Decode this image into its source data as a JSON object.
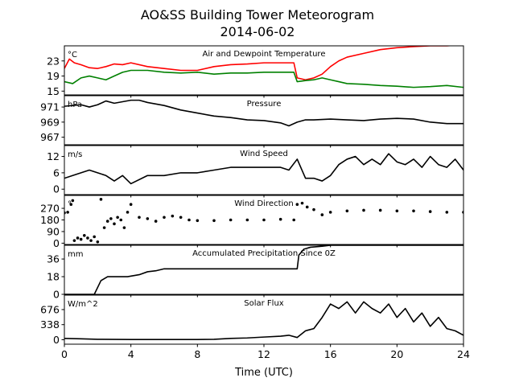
{
  "figure": {
    "title_line1": "AO&SS Building Tower Meteorogram",
    "title_line2": "2014-06-02",
    "xlabel": "Time (UTC)",
    "xlim": [
      0,
      24
    ],
    "xticks": [
      0,
      4,
      8,
      12,
      16,
      20,
      24
    ]
  },
  "chart_data": [
    {
      "type": "line",
      "title": "Air and Dewpoint Temperature",
      "unit": "°C",
      "ylim": [
        14,
        27
      ],
      "yticks": [
        15,
        19,
        23
      ],
      "series": [
        {
          "color": "#ff0000",
          "x": [
            0,
            0.3,
            0.6,
            1,
            1.5,
            2,
            2.5,
            3,
            3.5,
            4,
            5,
            6,
            7,
            8,
            9,
            10,
            11,
            12,
            13,
            13.8,
            14,
            14.5,
            15,
            15.5,
            16,
            16.5,
            17,
            18,
            19,
            20,
            21,
            22,
            23,
            24
          ],
          "y": [
            21,
            23.5,
            22.5,
            22,
            21.2,
            21,
            21.5,
            22.2,
            22,
            22.5,
            21.5,
            21,
            20.5,
            20.5,
            21.5,
            22,
            22.2,
            22.5,
            22.5,
            22.5,
            18.5,
            18,
            18.5,
            19.5,
            21.5,
            23,
            24,
            25,
            26,
            26.5,
            26.8,
            27,
            27,
            27.3
          ]
        },
        {
          "color": "#008000",
          "x": [
            0,
            0.5,
            1,
            1.5,
            2,
            2.5,
            3,
            3.5,
            4,
            5,
            6,
            7,
            8,
            9,
            10,
            11,
            12,
            13,
            13.8,
            14,
            14.5,
            15,
            15.5,
            16,
            16.5,
            17,
            18,
            19,
            20,
            21,
            22,
            23,
            24
          ],
          "y": [
            17.5,
            17,
            18.5,
            19,
            18.5,
            18,
            19,
            20,
            20.5,
            20.5,
            20,
            19.8,
            20,
            19.5,
            19.8,
            19.8,
            20,
            20,
            20,
            17.5,
            17.8,
            18,
            18.5,
            18,
            17.5,
            17,
            16.8,
            16.5,
            16.3,
            16,
            16.2,
            16.5,
            16
          ]
        }
      ]
    },
    {
      "type": "line",
      "title": "Pressure",
      "unit": "hPa",
      "ylim": [
        966,
        972.5
      ],
      "yticks": [
        967,
        969,
        971
      ],
      "series": [
        {
          "color": "#000000",
          "x": [
            0,
            0.5,
            1,
            1.5,
            2,
            2.5,
            3,
            3.5,
            4,
            4.5,
            5,
            5.5,
            6,
            7,
            8,
            9,
            10,
            11,
            12,
            13,
            13.5,
            14,
            14.5,
            15,
            16,
            17,
            18,
            19,
            20,
            21,
            22,
            23,
            24
          ],
          "y": [
            971.1,
            971.2,
            971.3,
            971.0,
            971.3,
            971.8,
            971.5,
            971.7,
            971.9,
            971.9,
            971.6,
            971.4,
            971.2,
            970.6,
            970.2,
            969.8,
            969.6,
            969.3,
            969.2,
            968.9,
            968.5,
            969.0,
            969.3,
            969.3,
            969.4,
            969.3,
            969.2,
            969.4,
            969.5,
            969.4,
            969.0,
            968.8,
            968.8
          ]
        }
      ]
    },
    {
      "type": "line",
      "title": "Wind Speed",
      "unit": "m/s",
      "ylim": [
        -2,
        16
      ],
      "yticks": [
        0,
        6,
        12
      ],
      "series": [
        {
          "color": "#000000",
          "x": [
            0,
            0.5,
            1,
            1.5,
            2,
            2.5,
            3,
            3.5,
            4,
            5,
            6,
            7,
            8,
            9,
            10,
            11,
            12,
            13,
            13.5,
            14,
            14.5,
            15,
            15.5,
            16,
            16.5,
            17,
            17.5,
            18,
            18.5,
            19,
            19.5,
            20,
            20.5,
            21,
            21.5,
            22,
            22.5,
            23,
            23.5,
            24
          ],
          "y": [
            4,
            5,
            6,
            7,
            6,
            5,
            3,
            5,
            2,
            5,
            5,
            6,
            6,
            7,
            8,
            8,
            8,
            8,
            7,
            11,
            4,
            4,
            3,
            5,
            9,
            11,
            12,
            9,
            11,
            9,
            13,
            10,
            9,
            11,
            8,
            12,
            9,
            8,
            11,
            7
          ]
        }
      ]
    },
    {
      "type": "scatter",
      "title": "Wind Direction",
      "unit": "°",
      "ylim": [
        -10,
        370
      ],
      "yticks": [
        0,
        90,
        180,
        270
      ],
      "series": [
        {
          "color": "#000000",
          "x": [
            0,
            0.2,
            0.4,
            0.5,
            0.6,
            0.8,
            1,
            1.2,
            1.4,
            1.6,
            1.8,
            2,
            2.2,
            2.4,
            2.6,
            2.8,
            3,
            3.2,
            3.4,
            3.6,
            3.8,
            4,
            4.5,
            5,
            5.5,
            6,
            6.5,
            7,
            7.5,
            8,
            9,
            10,
            11,
            12,
            13,
            13.8,
            14,
            14.3,
            14.6,
            15,
            15.5,
            16,
            17,
            18,
            19,
            20,
            21,
            22,
            23,
            24
          ],
          "y": [
            235,
            240,
            300,
            330,
            20,
            40,
            30,
            60,
            40,
            20,
            50,
            10,
            340,
            120,
            170,
            190,
            150,
            200,
            180,
            120,
            240,
            300,
            200,
            190,
            170,
            200,
            210,
            200,
            180,
            175,
            175,
            180,
            180,
            180,
            185,
            180,
            300,
            310,
            280,
            260,
            220,
            240,
            250,
            255,
            255,
            250,
            250,
            245,
            240,
            240
          ]
        }
      ]
    },
    {
      "type": "line",
      "title": "Accumulated Precipitation Since 0Z",
      "unit": "mm",
      "ylim": [
        0,
        50
      ],
      "yticks": [
        0,
        18,
        36
      ],
      "series": [
        {
          "color": "#000000",
          "x": [
            0,
            1.8,
            2.2,
            2.6,
            3,
            3.8,
            4.5,
            5,
            5.5,
            6,
            7,
            8,
            9,
            10,
            11,
            12,
            13,
            14,
            14.1,
            14.4,
            14.8,
            15.5,
            16,
            16.5,
            17,
            18,
            20,
            22,
            24
          ],
          "y": [
            0,
            0,
            14,
            18,
            18,
            18,
            20,
            23,
            24,
            26,
            26,
            26,
            26,
            26,
            26,
            26,
            26,
            26,
            40,
            46,
            48,
            49,
            50,
            50,
            50,
            50,
            50,
            50,
            50
          ]
        }
      ]
    },
    {
      "type": "line",
      "title": "Solar Flux",
      "unit": "W/m^2",
      "ylim": [
        -100,
        1000
      ],
      "yticks": [
        0,
        338,
        676
      ],
      "series": [
        {
          "color": "#000000",
          "x": [
            0,
            1,
            2,
            4,
            6,
            8,
            9,
            10,
            11,
            12,
            13,
            13.5,
            14,
            14.5,
            15,
            15.5,
            16,
            16.5,
            17,
            17.5,
            18,
            18.5,
            19,
            19.5,
            20,
            20.5,
            21,
            21.5,
            22,
            22.5,
            23,
            23.5,
            24
          ],
          "y": [
            30,
            20,
            10,
            5,
            5,
            5,
            10,
            30,
            40,
            60,
            80,
            100,
            50,
            200,
            250,
            500,
            800,
            700,
            850,
            600,
            850,
            700,
            600,
            800,
            500,
            700,
            400,
            600,
            300,
            500,
            250,
            200,
            100
          ]
        }
      ]
    }
  ]
}
